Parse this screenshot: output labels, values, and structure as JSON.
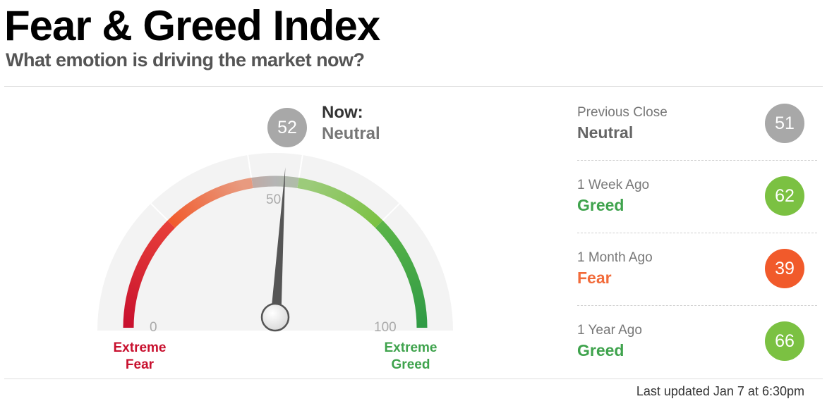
{
  "header": {
    "title": "Fear & Greed Index",
    "subtitle": "What emotion is driving the market now?"
  },
  "chart_data": {
    "type": "gauge",
    "value": 52,
    "min": 0,
    "max": 100,
    "ticks": [
      {
        "value": 0,
        "label": "0"
      },
      {
        "value": 50,
        "label": "50"
      },
      {
        "value": 100,
        "label": "100"
      }
    ],
    "segment_boundaries": [
      25,
      45,
      55,
      75
    ],
    "extreme_fear_label_line1": "Extreme",
    "extreme_fear_label_line2": "Fear",
    "extreme_greed_label_line1": "Extreme",
    "extreme_greed_label_line2": "Greed",
    "colors": {
      "extreme_fear": "#c8102e",
      "fear": "#f26b3a",
      "neutral": "#b3b3b3",
      "greed": "#8cc63f",
      "extreme_greed": "#3fa34d"
    }
  },
  "now": {
    "label": "Now:",
    "value": "52",
    "rating": "Neutral",
    "color": "#a8a8a8"
  },
  "history": [
    {
      "label": "Previous Close",
      "rating": "Neutral",
      "value": "51",
      "rating_color": "#666666",
      "circle_color": "#a8a8a8"
    },
    {
      "label": "1 Week Ago",
      "rating": "Greed",
      "value": "62",
      "rating_color": "#3fa34d",
      "circle_color": "#7bc142"
    },
    {
      "label": "1 Month Ago",
      "rating": "Fear",
      "value": "39",
      "rating_color": "#f26b3a",
      "circle_color": "#f15a2b"
    },
    {
      "label": "1 Year Ago",
      "rating": "Greed",
      "value": "66",
      "rating_color": "#3fa34d",
      "circle_color": "#7bc142"
    }
  ],
  "footer": {
    "last_updated": "Last updated Jan 7 at 6:30pm"
  }
}
